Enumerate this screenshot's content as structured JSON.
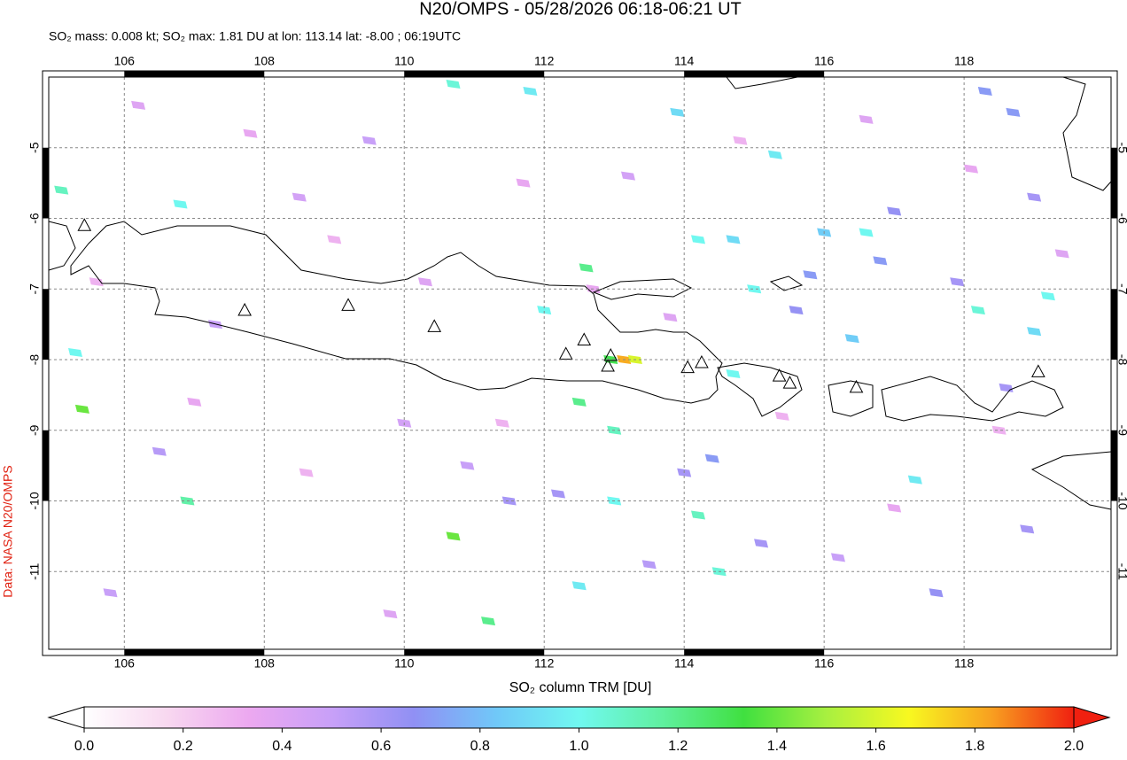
{
  "chart_data": {
    "type": "map",
    "title": "N20/OMPS - 05/28/2026 06:18-06:21 UT",
    "subtitle": "SO₂ mass: 0.008 kt; SO₂ max: 1.81 DU at lon: 113.14 lat: -8.00 ; 06:19UTC",
    "credit": "Data: NASA N20/OMPS",
    "colorbar_label": "SO₂ column TRM [DU]",
    "xlim": [
      104.92,
      120.1
    ],
    "ylim": [
      -12.1,
      -4.0
    ],
    "xticks": [
      106,
      108,
      110,
      112,
      114,
      116,
      118
    ],
    "yticks": [
      -5,
      -6,
      -7,
      -8,
      -9,
      -10,
      -11
    ],
    "grid": true,
    "clim": [
      0,
      2
    ],
    "cticks": [
      {
        "value": 0,
        "label": "0.0"
      },
      {
        "value": 0.2,
        "label": "0.2"
      },
      {
        "value": 0.4,
        "label": "0.4"
      },
      {
        "value": 0.6,
        "label": "0.6"
      },
      {
        "value": 0.8,
        "label": "0.8"
      },
      {
        "value": 1,
        "label": "1.0"
      },
      {
        "value": 1.2,
        "label": "1.2"
      },
      {
        "value": 1.4,
        "label": "1.4"
      },
      {
        "value": 1.6,
        "label": "1.6"
      },
      {
        "value": 1.8,
        "label": "1.8"
      },
      {
        "value": 2,
        "label": "2.0"
      }
    ],
    "colormap": [
      "#ffffff",
      "#f8d8f0",
      "#eca8f0",
      "#c8a0f8",
      "#9090f4",
      "#70c8f8",
      "#70f8f0",
      "#60f0a0",
      "#40e040",
      "#a8f040",
      "#f8f820",
      "#f8a020",
      "#f02010"
    ],
    "pixels": {
      "lon": [
        110.7,
        111.8,
        113.9,
        105.1,
        106.8,
        112.6,
        112.0,
        114.2,
        114.7,
        116.0,
        116.6,
        115.3,
        115.0,
        118.2,
        119.2,
        119.0,
        116.4,
        114.7,
        113.0,
        113.0,
        105.3,
        105.4,
        106.9,
        110.7,
        114.5,
        111.2,
        112.5,
        112.5,
        117.3,
        114.2,
        113.14,
        113.3,
        112.95,
        118.3,
        118.7,
        119.0,
        117.0,
        116.8,
        117.9,
        118.6,
        115.8,
        115.6,
        114.4,
        114.0,
        111.5,
        109.5,
        108.5,
        107.3,
        106.5,
        105.8,
        110.0,
        110.9,
        112.2,
        113.5,
        115.1,
        116.2,
        117.6,
        118.9,
        106.2,
        107.8,
        109.0,
        110.3,
        111.7,
        113.2,
        114.8,
        116.6,
        118.1,
        119.4,
        105.6,
        107.0,
        108.6,
        109.8,
        111.4,
        112.7,
        113.8,
        115.4,
        117.0,
        118.5
      ],
      "lat": [
        -4.1,
        -4.2,
        -4.5,
        -5.6,
        -5.8,
        -6.7,
        -7.3,
        -6.3,
        -6.3,
        -6.2,
        -6.2,
        -5.1,
        -7.0,
        -7.3,
        -7.1,
        -7.6,
        -7.7,
        -8.2,
        -9.0,
        -10.0,
        -7.9,
        -8.7,
        -10.0,
        -10.5,
        -11.0,
        -11.7,
        -8.6,
        -11.2,
        -9.7,
        -10.2,
        -8.0,
        -8.0,
        -8.0,
        -4.2,
        -4.5,
        -5.7,
        -5.9,
        -6.6,
        -6.9,
        -8.4,
        -6.8,
        -7.3,
        -9.4,
        -9.6,
        -10.0,
        -4.9,
        -5.7,
        -7.5,
        -9.3,
        -11.3,
        -8.9,
        -9.5,
        -9.9,
        -10.9,
        -10.6,
        -10.8,
        -11.3,
        -10.4,
        -4.4,
        -4.8,
        -6.3,
        -6.9,
        -5.5,
        -5.4,
        -4.9,
        -4.6,
        -5.3,
        -6.5,
        -6.9,
        -8.6,
        -9.6,
        -11.6,
        -8.9,
        -7.0,
        -7.4,
        -8.8,
        -10.1,
        -9.0
      ],
      "values": [
        1.05,
        0.95,
        0.9,
        1.1,
        1.0,
        1.2,
        1.0,
        1.0,
        0.9,
        0.85,
        1.0,
        0.95,
        1.0,
        1.05,
        1.0,
        0.9,
        0.85,
        1.0,
        1.1,
        1.0,
        1.0,
        1.4,
        1.15,
        1.4,
        1.05,
        1.2,
        1.2,
        0.95,
        0.95,
        1.1,
        1.81,
        1.6,
        1.3,
        0.7,
        0.7,
        0.6,
        0.65,
        0.7,
        0.6,
        0.6,
        0.7,
        0.65,
        0.7,
        0.6,
        0.6,
        0.5,
        0.45,
        0.5,
        0.55,
        0.5,
        0.45,
        0.5,
        0.6,
        0.55,
        0.6,
        0.5,
        0.65,
        0.6,
        0.4,
        0.35,
        0.3,
        0.4,
        0.35,
        0.45,
        0.3,
        0.4,
        0.35,
        0.4,
        0.3,
        0.35,
        0.3,
        0.4,
        0.3,
        0.35,
        0.4,
        0.3,
        0.35,
        0.3
      ]
    },
    "volcanoes": {
      "lon": [
        105.43,
        107.72,
        109.2,
        110.43,
        112.31,
        112.57,
        112.95,
        112.91,
        114.05,
        114.25,
        115.36,
        115.51,
        116.46,
        119.06
      ],
      "lat": [
        -6.11,
        -7.31,
        -7.24,
        -7.54,
        -7.93,
        -7.73,
        -7.95,
        -8.1,
        -8.12,
        -8.05,
        -8.24,
        -8.34,
        -8.4,
        -8.18
      ]
    }
  }
}
